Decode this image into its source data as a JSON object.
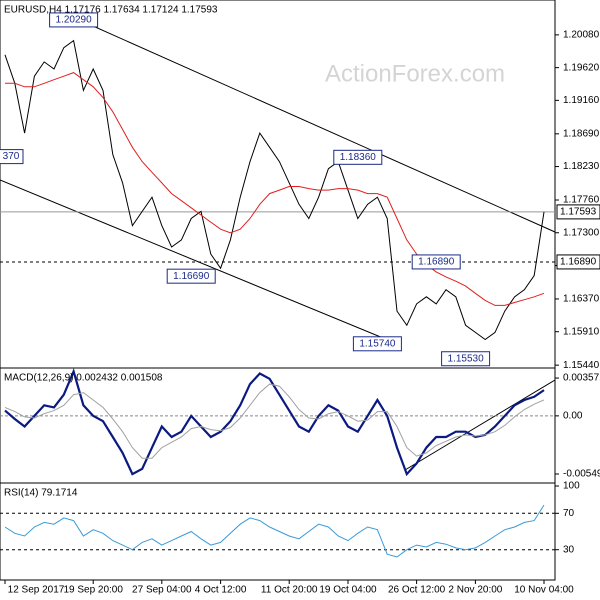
{
  "chart_data": [
    {
      "type": "line",
      "title": "EURUSD,H4  1.17176 1.17634 1.17124 1.17593",
      "watermark": "ActionForex.com",
      "categories": [
        "12 Sep 2017",
        null,
        null,
        null,
        null,
        null,
        null,
        null,
        null,
        "19 Sep 20:00",
        null,
        null,
        null,
        null,
        null,
        null,
        "27 Sep 04:00",
        null,
        null,
        null,
        null,
        null,
        "4 Oct 12:00",
        null,
        null,
        null,
        null,
        null,
        null,
        "11 Oct 20:00",
        null,
        null,
        null,
        null,
        null,
        "19 Oct 04:00",
        null,
        null,
        null,
        null,
        null,
        null,
        "26 Oct 12:00",
        null,
        null,
        null,
        null,
        null,
        "2 Nov 20:00",
        null,
        null,
        null,
        null,
        null,
        null,
        "10 Nov 04:00"
      ],
      "series": [
        {
          "color": "#000000",
          "values": [
            1.198,
            1.194,
            1.187,
            1.195,
            1.197,
            1.196,
            1.199,
            1.2,
            1.193,
            1.196,
            1.193,
            1.184,
            1.18,
            1.174,
            1.176,
            1.178,
            1.174,
            1.171,
            1.172,
            1.175,
            1.176,
            1.17,
            1.168,
            1.172,
            1.178,
            1.183,
            1.187,
            1.185,
            1.183,
            1.18,
            1.177,
            1.175,
            1.178,
            1.182,
            1.183,
            1.179,
            1.175,
            1.177,
            1.178,
            1.175,
            1.162,
            1.16,
            1.163,
            1.164,
            1.163,
            1.165,
            1.164,
            1.16,
            1.159,
            1.158,
            1.159,
            1.162,
            1.164,
            1.165,
            1.167,
            1.17593
          ]
        },
        {
          "color": "#e02020",
          "values": [
            1.194,
            1.194,
            1.1935,
            1.1935,
            1.194,
            1.1945,
            1.195,
            1.1955,
            1.1945,
            1.1935,
            1.192,
            1.19,
            1.1875,
            1.185,
            1.183,
            1.1815,
            1.18,
            1.1785,
            1.1775,
            1.1765,
            1.1755,
            1.1745,
            1.1735,
            1.173,
            1.1735,
            1.175,
            1.177,
            1.1785,
            1.179,
            1.1795,
            1.1795,
            1.1792,
            1.179,
            1.179,
            1.1792,
            1.1792,
            1.179,
            1.1785,
            1.1785,
            1.178,
            1.175,
            1.172,
            1.17,
            1.1685,
            1.1675,
            1.1668,
            1.1662,
            1.1655,
            1.1645,
            1.1635,
            1.1628,
            1.1628,
            1.1632,
            1.1636,
            1.164,
            1.1645
          ]
        }
      ],
      "ylim": [
        1.154,
        1.2057
      ],
      "yticks": [
        {
          "value": 1.1544,
          "label": "1.15440"
        },
        {
          "value": 1.1591,
          "label": "1.15910"
        },
        {
          "value": 1.1637,
          "label": "1.16370"
        },
        {
          "value": 1.1684,
          "label": "1.16840"
        },
        {
          "value": 1.173,
          "label": "1.17300"
        },
        {
          "value": 1.1776,
          "label": "1.17760"
        },
        {
          "value": 1.1823,
          "label": "1.18230"
        },
        {
          "value": 1.1869,
          "label": "1.18690"
        },
        {
          "value": 1.1916,
          "label": "1.19160"
        },
        {
          "value": 1.1962,
          "label": "1.19620"
        },
        {
          "value": 1.2008,
          "label": "1.20080"
        }
      ],
      "hlines": [
        {
          "value": 1.17593,
          "label": "1.17593",
          "style": "solid"
        },
        {
          "value": 1.1689,
          "label": "1.16890",
          "style": "dashed"
        }
      ],
      "annotations": [
        {
          "value": 1.2029,
          "label": "1.20290",
          "x": 7
        },
        {
          "value": 1.1837,
          "label": "370",
          "x": 0
        },
        {
          "value": 1.1669,
          "label": "1.16690",
          "x": 19
        },
        {
          "value": 1.1836,
          "label": "1.18360",
          "x": 36
        },
        {
          "value": 1.1689,
          "label": "1.16890",
          "x": 44
        },
        {
          "value": 1.1574,
          "label": "1.15740",
          "x": 38
        },
        {
          "value": 1.1553,
          "label": "1.15530",
          "x": 47
        }
      ]
    },
    {
      "type": "line",
      "title": "MACD(12,26,9) 0.002432 0.001508",
      "series": [
        {
          "color": "#0a1a80",
          "values": [
            0.0005,
            -0.0003,
            -0.001,
            0.0,
            0.001,
            0.0008,
            0.002,
            0.0042,
            0.001,
            0.0,
            -0.0005,
            -0.002,
            -0.0035,
            -0.0055,
            -0.005,
            -0.003,
            -0.001,
            -0.002,
            -0.0015,
            0.0,
            -0.001,
            -0.002,
            -0.0015,
            -0.0005,
            0.001,
            0.003,
            0.004,
            0.0035,
            0.002,
            0.0005,
            -0.001,
            -0.0015,
            0.0,
            0.001,
            0.0005,
            -0.001,
            -0.0015,
            0.0,
            0.0015,
            0.0,
            -0.003,
            -0.0055,
            -0.0045,
            -0.003,
            -0.002,
            -0.002,
            -0.0015,
            -0.0015,
            -0.002,
            -0.0018,
            -0.001,
            0.0,
            0.001,
            0.0015,
            0.0018,
            0.002432
          ]
        },
        {
          "color": "#a0a0a0",
          "values": [
            0.0008,
            0.0004,
            -0.0001,
            -0.0002,
            0.0002,
            0.0005,
            0.001,
            0.002,
            0.0022,
            0.0015,
            0.0008,
            -0.0003,
            -0.0015,
            -0.003,
            -0.004,
            -0.004,
            -0.003,
            -0.0025,
            -0.002,
            -0.0012,
            -0.001,
            -0.0013,
            -0.0014,
            -0.0011,
            -0.0002,
            0.001,
            0.0022,
            0.003,
            0.0028,
            0.0018,
            0.0006,
            -0.0002,
            -0.0003,
            0.0002,
            0.0004,
            0.0,
            -0.0005,
            -0.0004,
            0.0004,
            0.0004,
            -0.001,
            -0.003,
            -0.0038,
            -0.0035,
            -0.0028,
            -0.0024,
            -0.002,
            -0.0018,
            -0.0019,
            -0.0018,
            -0.0015,
            -0.0009,
            -0.0001,
            0.0006,
            0.0011,
            0.001508
          ]
        }
      ],
      "ylim": [
        0.00452,
        -0.00634
      ],
      "yticks": [
        0.003571,
        {
          "value": 0,
          "label": "0.00"
        },
        -0.00549
      ],
      "zero_line": true
    },
    {
      "type": "line",
      "title": "RSI(14) 79.1714",
      "series": [
        {
          "color": "#3a9ad9",
          "values": [
            55,
            48,
            45,
            55,
            60,
            58,
            65,
            62,
            45,
            52,
            48,
            40,
            35,
            30,
            38,
            42,
            35,
            40,
            45,
            50,
            42,
            35,
            38,
            48,
            58,
            65,
            62,
            55,
            50,
            45,
            42,
            50,
            58,
            55,
            45,
            40,
            48,
            55,
            52,
            25,
            22,
            30,
            35,
            33,
            38,
            36,
            32,
            30,
            32,
            38,
            45,
            52,
            55,
            60,
            62,
            79.1714
          ]
        }
      ],
      "ylim": [
        103.3,
        -3.3
      ],
      "yticks": [
        30,
        70,
        100
      ],
      "hlines": [
        {
          "value": 30,
          "style": "dashed"
        },
        {
          "value": 70,
          "style": "dashed"
        }
      ]
    }
  ]
}
